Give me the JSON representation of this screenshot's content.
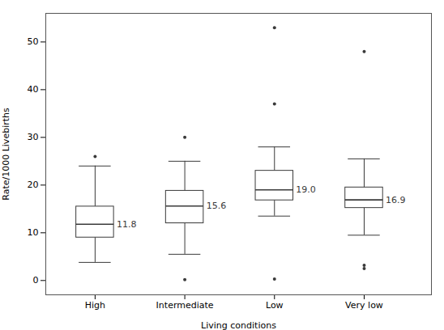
{
  "chart_data": {
    "type": "box",
    "categories": [
      "High",
      "Intermediate",
      "Low",
      "Very low"
    ],
    "xlabel": "Living conditions",
    "ylabel": "Rate/1000 Livebirths",
    "ylim": [
      -3,
      56
    ],
    "yticks": [
      0,
      10,
      20,
      30,
      40,
      50
    ],
    "median": [
      11.8,
      15.6,
      19.0,
      16.9
    ],
    "q1": [
      9.0,
      12.0,
      16.8,
      15.2
    ],
    "q3": [
      15.5,
      18.8,
      23.0,
      19.5
    ],
    "whisker_low": [
      3.8,
      5.5,
      13.5,
      9.5
    ],
    "whisker_high": [
      24.0,
      25.0,
      28.0,
      25.5
    ],
    "fliers": [
      [
        26.0
      ],
      [
        0.2,
        30.0
      ],
      [
        0.3,
        37.0,
        53.0
      ],
      [
        2.5,
        3.2,
        48.0
      ]
    ],
    "data_labels": true,
    "value_labels": [
      "11.8",
      "15.6",
      "19.0",
      "16.9"
    ],
    "color": "#3a3a3a",
    "grid": false
  }
}
